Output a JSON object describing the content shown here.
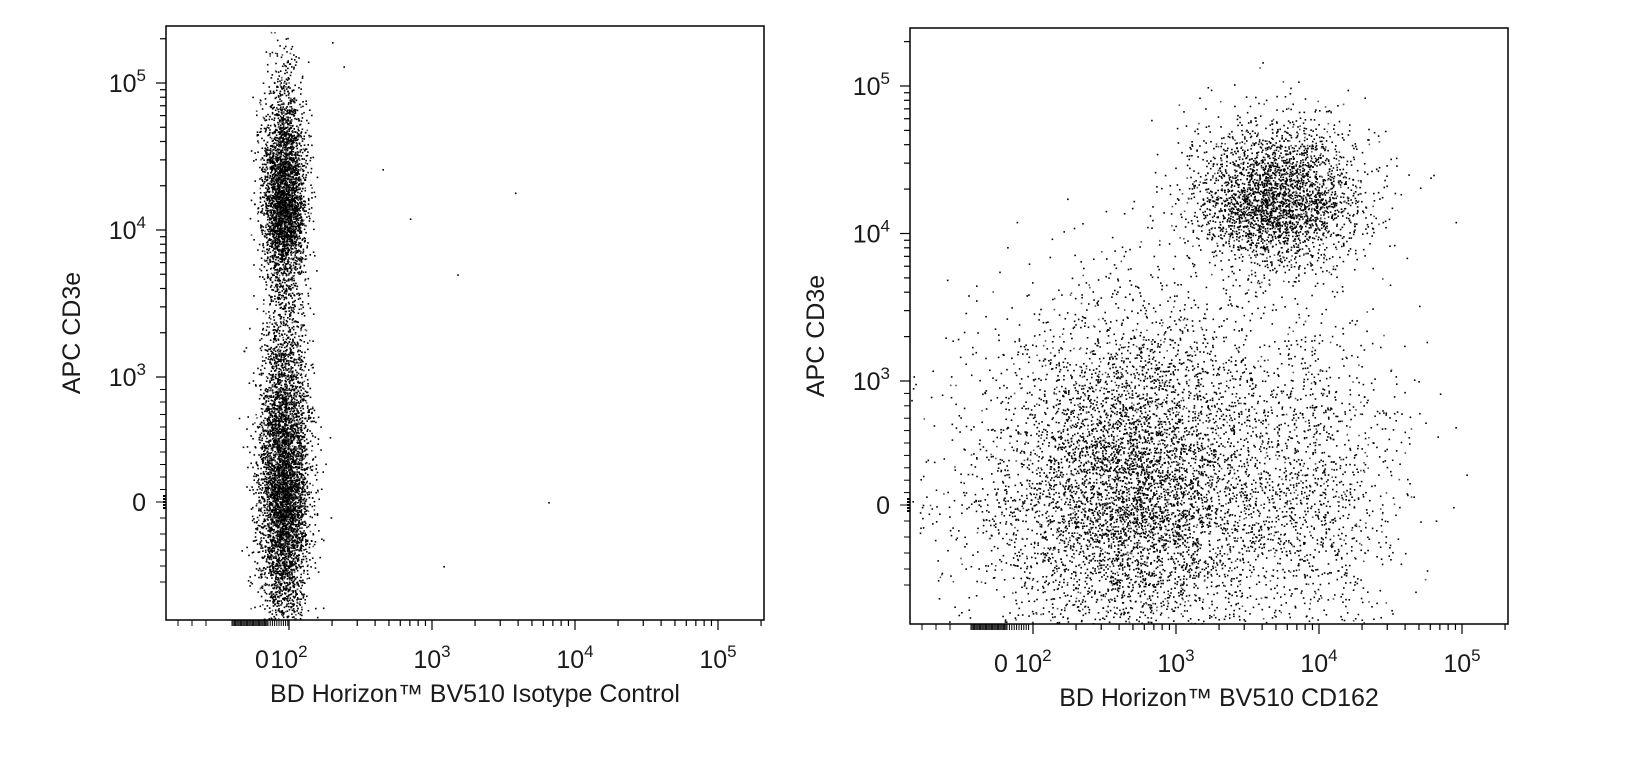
{
  "chart_data": [
    {
      "type": "scatter",
      "xlabel": "BD Horizon™ BV510 Isotype Control",
      "ylabel": "APC CD3e",
      "x_scale": "biexponential",
      "y_scale": "biexponential",
      "xlim": [
        -300,
        250000
      ],
      "ylim": [
        -500,
        250000
      ],
      "x_ticks": [
        {
          "label": "0",
          "value": 0
        },
        {
          "label": "10",
          "sup": "2",
          "value": 100
        },
        {
          "label": "10",
          "sup": "3",
          "value": 1000
        },
        {
          "label": "10",
          "sup": "4",
          "value": 10000
        },
        {
          "label": "10",
          "sup": "5",
          "value": 100000
        }
      ],
      "y_ticks": [
        {
          "label": "0",
          "value": 0
        },
        {
          "label": "10",
          "sup": "3",
          "value": 1000
        },
        {
          "label": "10",
          "sup": "4",
          "value": 10000
        },
        {
          "label": "10",
          "sup": "5",
          "value": 100000
        }
      ],
      "populations": [
        {
          "x_center": 70,
          "y_center": 17000,
          "x_spread": 30,
          "y_spread": 0.35,
          "events": 3400
        },
        {
          "x_center": 70,
          "y_center": 150,
          "x_spread": 35,
          "y_spread": 0.55,
          "events": 5200
        }
      ],
      "outliers": [
        [
          200,
          190000
        ],
        [
          240,
          130000
        ],
        [
          3800,
          18000
        ],
        [
          1500,
          5000
        ],
        [
          6500,
          0
        ],
        [
          1200,
          -400
        ],
        [
          700,
          12000
        ],
        [
          450,
          26000
        ]
      ]
    },
    {
      "type": "scatter",
      "xlabel": "BD Horizon™ BV510 CD162",
      "ylabel": "APC CD3e",
      "x_scale": "biexponential",
      "y_scale": "biexponential",
      "xlim": [
        -300,
        250000
      ],
      "ylim": [
        -500,
        250000
      ],
      "x_ticks": [
        {
          "label": "0",
          "value": 0
        },
        {
          "label": "10",
          "sup": "2",
          "value": 100
        },
        {
          "label": "10",
          "sup": "3",
          "value": 1000
        },
        {
          "label": "10",
          "sup": "4",
          "value": 10000
        },
        {
          "label": "10",
          "sup": "5",
          "value": 100000
        }
      ],
      "y_ticks": [
        {
          "label": "0",
          "value": 0
        },
        {
          "label": "10",
          "sup": "3",
          "value": 1000
        },
        {
          "label": "10",
          "sup": "4",
          "value": 10000
        },
        {
          "label": "10",
          "sup": "5",
          "value": 100000
        }
      ],
      "populations": [
        {
          "x_center": 5000,
          "y_center": 17000,
          "x_spread": 0.3,
          "y_spread": 0.25,
          "events": 3000
        },
        {
          "x_center": 550,
          "y_center": 150,
          "x_spread": 0.45,
          "y_spread": 0.6,
          "events": 5500
        },
        {
          "x_center": 8000,
          "y_center": 200,
          "x_spread": 0.35,
          "y_spread": 0.6,
          "events": 1400
        },
        {
          "x_center": 120,
          "y_center": 100,
          "x_spread": 0.5,
          "y_spread": 0.6,
          "events": 800
        }
      ],
      "outliers": [
        [
          40,
          12000
        ],
        [
          90000,
          12000
        ],
        [
          70000,
          900
        ],
        [
          4500,
          55000
        ],
        [
          60000,
          24000
        ]
      ]
    }
  ]
}
